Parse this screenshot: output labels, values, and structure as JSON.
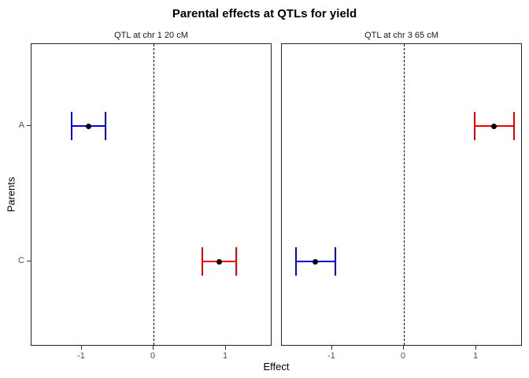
{
  "chart_data": {
    "type": "scatter",
    "title": "Parental effects at QTLs for yield",
    "xlabel": "Effect",
    "ylabel": "Parents",
    "categories": [
      "A",
      "C"
    ],
    "xticks": [
      -1,
      0,
      1
    ],
    "xlim": [
      -1.7,
      1.65
    ],
    "grid": false,
    "legend": "none",
    "reference_line": {
      "x": 0,
      "style": "dashed",
      "color": "#000000"
    },
    "point_color": "#000000",
    "colors": {
      "negative_blue": "#0000EE",
      "positive_red": "#EE0000"
    },
    "panels": [
      {
        "title": "QTL at chr 1 20 cM",
        "series": [
          {
            "parent": "A",
            "estimate": -0.91,
            "ci_low": -1.15,
            "ci_high": -0.67,
            "color": "#0000EE"
          },
          {
            "parent": "C",
            "estimate": 0.91,
            "ci_low": 0.67,
            "ci_high": 1.15,
            "color": "#EE0000"
          }
        ]
      },
      {
        "title": "QTL at chr 3 65 cM",
        "series": [
          {
            "parent": "A",
            "estimate": 1.25,
            "ci_low": 0.97,
            "ci_high": 1.53,
            "color": "#EE0000"
          },
          {
            "parent": "C",
            "estimate": -1.24,
            "ci_low": -1.51,
            "ci_high": -0.96,
            "color": "#0000EE"
          }
        ]
      }
    ]
  }
}
